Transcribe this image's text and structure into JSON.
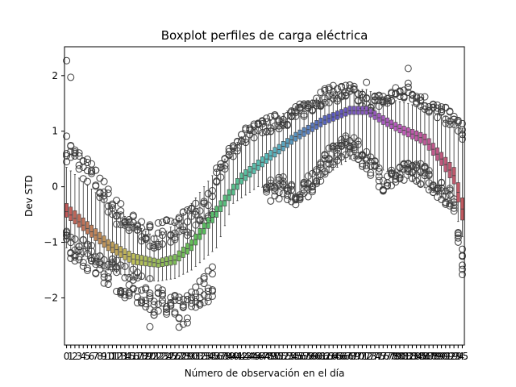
{
  "chart_data": {
    "type": "box",
    "title": "Boxplot perfiles de carga eléctrica",
    "xlabel": "Número de observación en el día",
    "ylabel": "Dev STD",
    "categories_count": 96,
    "x_tick_labels": [
      "0",
      "1",
      "2",
      "3",
      "4",
      "5",
      "6",
      "7",
      "8",
      "9",
      "10",
      "11",
      "12",
      "13",
      "14",
      "15",
      "16",
      "17",
      "18",
      "19",
      "20",
      "21",
      "22",
      "23",
      "24",
      "25",
      "26",
      "27",
      "28",
      "29",
      "30",
      "31",
      "32",
      "33",
      "34",
      "35",
      "36",
      "37",
      "38",
      "39",
      "40",
      "41",
      "42",
      "43",
      "44",
      "45",
      "46",
      "47",
      "48",
      "49",
      "50",
      "51",
      "52",
      "53",
      "54",
      "55",
      "56",
      "57",
      "58",
      "59",
      "60",
      "61",
      "62",
      "63",
      "64",
      "65",
      "66",
      "67",
      "68",
      "69",
      "70",
      "71",
      "72",
      "73",
      "74",
      "75",
      "76",
      "77",
      "78",
      "79",
      "80",
      "81",
      "82",
      "83",
      "84",
      "85",
      "86",
      "87",
      "88",
      "89",
      "90",
      "91",
      "92",
      "93",
      "94",
      "95"
    ],
    "ylim": [
      -2.85,
      2.52
    ],
    "y_ticks": [
      -2,
      -1,
      0,
      1,
      2
    ],
    "y_tick_labels": [
      "−2",
      "−1",
      "0",
      "1",
      "2"
    ],
    "median_keyframes": [
      [
        0,
        -0.45
      ],
      [
        10,
        -1.05
      ],
      [
        16,
        -1.3
      ],
      [
        22,
        -1.38
      ],
      [
        26,
        -1.32
      ],
      [
        30,
        -1.05
      ],
      [
        36,
        -0.45
      ],
      [
        42,
        0.15
      ],
      [
        48,
        0.5
      ],
      [
        55,
        0.9
      ],
      [
        62,
        1.2
      ],
      [
        68,
        1.37
      ],
      [
        72,
        1.37
      ],
      [
        76,
        1.2
      ],
      [
        80,
        1.05
      ],
      [
        86,
        0.85
      ],
      [
        90,
        0.5
      ],
      [
        93,
        0.2
      ],
      [
        95,
        -0.4
      ]
    ],
    "q1_keyframes": [
      [
        0,
        -0.55
      ],
      [
        10,
        -1.15
      ],
      [
        16,
        -1.4
      ],
      [
        22,
        -1.45
      ],
      [
        26,
        -1.4
      ],
      [
        30,
        -1.15
      ],
      [
        36,
        -0.55
      ],
      [
        42,
        0.05
      ],
      [
        48,
        0.42
      ],
      [
        55,
        0.82
      ],
      [
        62,
        1.12
      ],
      [
        68,
        1.3
      ],
      [
        72,
        1.3
      ],
      [
        76,
        1.12
      ],
      [
        80,
        0.97
      ],
      [
        86,
        0.75
      ],
      [
        90,
        0.38
      ],
      [
        93,
        0.05
      ],
      [
        95,
        -0.6
      ]
    ],
    "q3_keyframes": [
      [
        0,
        -0.3
      ],
      [
        10,
        -0.95
      ],
      [
        16,
        -1.2
      ],
      [
        22,
        -1.3
      ],
      [
        26,
        -1.22
      ],
      [
        30,
        -0.95
      ],
      [
        36,
        -0.35
      ],
      [
        42,
        0.25
      ],
      [
        48,
        0.6
      ],
      [
        55,
        0.98
      ],
      [
        62,
        1.28
      ],
      [
        68,
        1.45
      ],
      [
        72,
        1.45
      ],
      [
        76,
        1.28
      ],
      [
        80,
        1.12
      ],
      [
        86,
        0.95
      ],
      [
        90,
        0.62
      ],
      [
        93,
        0.35
      ],
      [
        95,
        -0.2
      ]
    ],
    "lower_whisker_keyframes": [
      [
        0,
        -1.1
      ],
      [
        10,
        -1.5
      ],
      [
        16,
        -1.65
      ],
      [
        22,
        -1.7
      ],
      [
        26,
        -1.65
      ],
      [
        30,
        -1.5
      ],
      [
        36,
        -1.1
      ],
      [
        40,
        -0.3
      ],
      [
        46,
        0.0
      ],
      [
        52,
        -0.05
      ],
      [
        56,
        -0.2
      ],
      [
        62,
        0.2
      ],
      [
        68,
        0.5
      ],
      [
        72,
        0.55
      ],
      [
        76,
        0.3
      ],
      [
        82,
        0.15
      ],
      [
        88,
        -0.1
      ],
      [
        93,
        -0.35
      ],
      [
        95,
        -0.9
      ]
    ],
    "upper_whisker_keyframes": [
      [
        0,
        0.35
      ],
      [
        10,
        -0.3
      ],
      [
        16,
        -0.65
      ],
      [
        22,
        -0.95
      ],
      [
        26,
        -0.65
      ],
      [
        30,
        -0.3
      ],
      [
        36,
        0.3
      ],
      [
        42,
        0.9
      ],
      [
        48,
        1.15
      ],
      [
        55,
        1.45
      ],
      [
        62,
        1.65
      ],
      [
        68,
        1.75
      ],
      [
        72,
        1.75
      ],
      [
        76,
        1.6
      ],
      [
        82,
        1.5
      ],
      [
        88,
        1.35
      ],
      [
        93,
        1.2
      ],
      [
        95,
        1.05
      ]
    ],
    "outlier_bands": [
      {
        "range": [
          0,
          36
        ],
        "center": [
          [
            0,
            0.7
          ],
          [
            6,
            0.2
          ],
          [
            12,
            -0.45
          ],
          [
            18,
            -0.85
          ],
          [
            22,
            -0.9
          ],
          [
            26,
            -0.7
          ],
          [
            30,
            -0.6
          ],
          [
            36,
            -0.2
          ]
        ],
        "spread": 0.25,
        "count": 4
      },
      {
        "range": [
          0,
          36
        ],
        "center": [
          [
            0,
            -1.1
          ],
          [
            8,
            -1.4
          ],
          [
            14,
            -1.7
          ],
          [
            20,
            -1.95
          ],
          [
            24,
            -2.2
          ],
          [
            28,
            -2.3
          ],
          [
            33,
            -1.85
          ],
          [
            36,
            -1.6
          ]
        ],
        "spread": 0.3,
        "count": 5
      },
      {
        "range": [
          36,
          96
        ],
        "center": [
          [
            36,
            0.2
          ],
          [
            42,
            0.9
          ],
          [
            48,
            1.1
          ],
          [
            55,
            1.3
          ],
          [
            62,
            1.65
          ],
          [
            68,
            1.72
          ],
          [
            72,
            1.5
          ],
          [
            76,
            1.55
          ],
          [
            82,
            1.75
          ],
          [
            88,
            1.4
          ],
          [
            93,
            1.2
          ],
          [
            95,
            1.0
          ]
        ],
        "spread": 0.15,
        "count": 4
      },
      {
        "range": [
          48,
          96
        ],
        "center": [
          [
            48,
            -0.1
          ],
          [
            52,
            0.0
          ],
          [
            56,
            -0.2
          ],
          [
            60,
            0.2
          ],
          [
            64,
            0.6
          ],
          [
            68,
            0.75
          ],
          [
            72,
            0.5
          ],
          [
            76,
            0.1
          ],
          [
            80,
            0.2
          ],
          [
            84,
            0.3
          ],
          [
            90,
            -0.05
          ],
          [
            93,
            -0.3
          ],
          [
            95,
            -1.3
          ]
        ],
        "spread": 0.2,
        "count": 5
      }
    ],
    "extreme_points": [
      [
        0,
        2.27
      ],
      [
        1,
        1.97
      ],
      [
        82,
        2.13
      ],
      [
        72,
        1.88
      ],
      [
        95,
        -1.58
      ],
      [
        20,
        -2.52
      ]
    ]
  }
}
